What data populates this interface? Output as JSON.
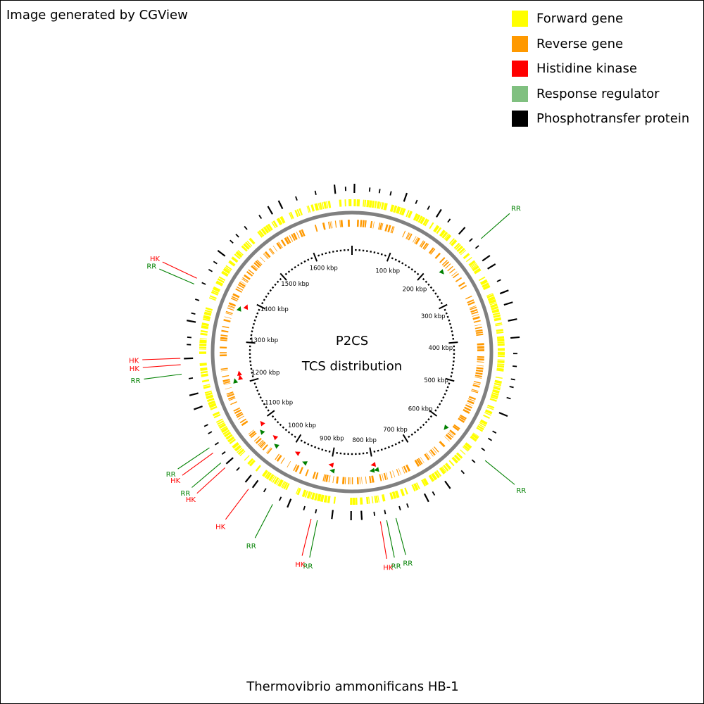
{
  "credit": "Image generated by CGView",
  "organism": "Thermovibrio ammonificans HB-1",
  "center_title": [
    "P2CS",
    "TCS distribution"
  ],
  "legend": [
    {
      "label": "Forward gene",
      "color": "#ffff00"
    },
    {
      "label": "Reverse gene",
      "color": "#ff9900"
    },
    {
      "label": "Histidine kinase",
      "color": "#ff0000"
    },
    {
      "label": "Response regulator",
      "color": "#80c080"
    },
    {
      "label": "Phosphotransfer protein",
      "color": "#000000"
    }
  ],
  "colors": {
    "hk_label": "#ff0000",
    "rr_label": "#008000",
    "hk_marker": "#ff0000",
    "rr_marker": "#008000",
    "backbone": "#808080"
  },
  "genome_length_kbp": 1700,
  "scale_labels": [
    "100 kbp",
    "200 kbp",
    "300 kbp",
    "400 kbp",
    "500 kbp",
    "600 kbp",
    "700 kbp",
    "800 kbp",
    "900 kbp",
    "1000 kbp",
    "1100 kbp",
    "1200 kbp",
    "1300 kbp",
    "1400 kbp",
    "1500 kbp",
    "1600 kbp"
  ],
  "tcs_features": [
    {
      "type": "RR",
      "position_kbp": 230
    },
    {
      "type": "RR",
      "position_kbp": 610
    },
    {
      "type": "RR",
      "position_kbp": 795
    },
    {
      "type": "HK",
      "position_kbp": 800
    },
    {
      "type": "RR",
      "position_kbp": 805
    },
    {
      "type": "RR",
      "position_kbp": 895
    },
    {
      "type": "HK",
      "position_kbp": 900
    },
    {
      "type": "RR",
      "position_kbp": 960
    },
    {
      "type": "HK",
      "position_kbp": 985
    },
    {
      "type": "RR",
      "position_kbp": 1035
    },
    {
      "type": "HK",
      "position_kbp": 1050
    },
    {
      "type": "RR",
      "position_kbp": 1080
    },
    {
      "type": "HK",
      "position_kbp": 1095
    },
    {
      "type": "RR",
      "position_kbp": 1210
    },
    {
      "type": "HK",
      "position_kbp": 1215
    },
    {
      "type": "HK",
      "position_kbp": 1225
    },
    {
      "type": "RR",
      "position_kbp": 1375
    },
    {
      "type": "HK",
      "position_kbp": 1385
    }
  ],
  "callouts": [
    {
      "text": "RR",
      "type": "RR",
      "position_kbp": 230
    },
    {
      "text": "RR",
      "type": "RR",
      "position_kbp": 610
    },
    {
      "text": "RR",
      "type": "RR",
      "position_kbp": 780
    },
    {
      "text": "RR",
      "type": "RR",
      "position_kbp": 795
    },
    {
      "text": "HK",
      "type": "HK",
      "position_kbp": 805
    },
    {
      "text": "RR",
      "type": "RR",
      "position_kbp": 905
    },
    {
      "text": "HK",
      "type": "HK",
      "position_kbp": 915
    },
    {
      "text": "RR",
      "type": "RR",
      "position_kbp": 980
    },
    {
      "text": "HK",
      "type": "HK",
      "position_kbp": 1025
    },
    {
      "text": "HK",
      "type": "HK",
      "position_kbp": 1075
    },
    {
      "text": "RR",
      "type": "RR",
      "position_kbp": 1085
    },
    {
      "text": "HK",
      "type": "HK",
      "position_kbp": 1105
    },
    {
      "text": "RR",
      "type": "RR",
      "position_kbp": 1115
    },
    {
      "text": "RR",
      "type": "RR",
      "position_kbp": 1240
    },
    {
      "text": "HK",
      "type": "HK",
      "position_kbp": 1255
    },
    {
      "text": "HK",
      "type": "HK",
      "position_kbp": 1265
    },
    {
      "text": "RR",
      "type": "RR",
      "position_kbp": 1385
    },
    {
      "text": "HK",
      "type": "HK",
      "position_kbp": 1395
    }
  ]
}
